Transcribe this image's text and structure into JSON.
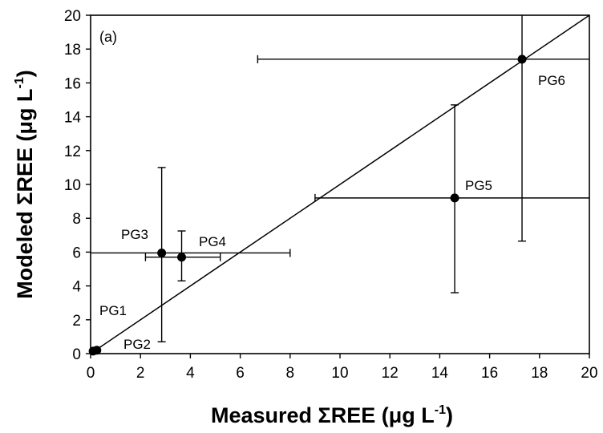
{
  "chart_data": {
    "type": "scatter",
    "panel_label": "(a)",
    "xlabel": {
      "main": "Measured ΣREE (μg L",
      "sup": "-1",
      "tail": ")"
    },
    "ylabel": {
      "main": "Modeled ΣREE (μg L",
      "sup": "-1",
      "tail": ")"
    },
    "xlim": [
      0,
      20
    ],
    "ylim": [
      0,
      20
    ],
    "x_ticks": [
      "0",
      "2",
      "4",
      "6",
      "8",
      "10",
      "12",
      "14",
      "16",
      "18",
      "20"
    ],
    "y_ticks": [
      "0",
      "2",
      "4",
      "6",
      "8",
      "10",
      "12",
      "14",
      "16",
      "18",
      "20"
    ],
    "grid": false,
    "reference_line": "1:1",
    "points": [
      {
        "label": "PG1",
        "x": 0.1,
        "y": 0.15,
        "xerr": null,
        "yerr": null
      },
      {
        "label": "PG2",
        "x": 0.25,
        "y": 0.2,
        "xerr": null,
        "yerr": null
      },
      {
        "label": "PG3",
        "x": 2.85,
        "y": 5.95,
        "xerr": [
          0,
          8.0
        ],
        "yerr": [
          0.7,
          11.0
        ]
      },
      {
        "label": "PG4",
        "x": 3.65,
        "y": 5.7,
        "xerr": [
          2.2,
          5.2
        ],
        "yerr": [
          4.3,
          7.25
        ]
      },
      {
        "label": "PG5",
        "x": 14.6,
        "y": 9.2,
        "xerr": [
          9.0,
          20.0
        ],
        "yerr": [
          3.6,
          14.7
        ]
      },
      {
        "label": "PG6",
        "x": 17.3,
        "y": 17.4,
        "xerr": [
          6.7,
          20.0
        ],
        "yerr": [
          6.65,
          20.0
        ]
      }
    ]
  }
}
